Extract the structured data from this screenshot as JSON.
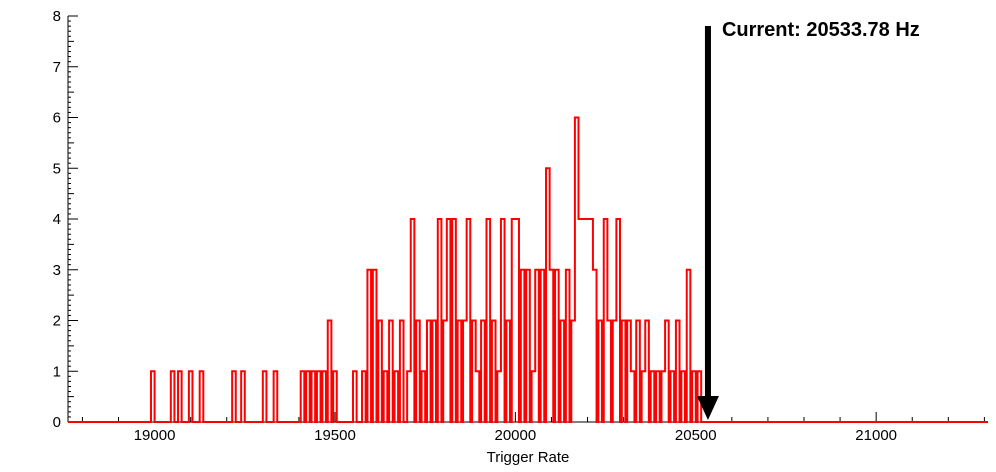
{
  "annotation": {
    "text": "Current: 20533.78 Hz",
    "x": 20533.78,
    "arrow_color": "#000000"
  },
  "chart_data": {
    "type": "bar",
    "style": "step-histogram",
    "title": "",
    "xlabel": "Trigger Rate",
    "ylabel": "",
    "color": "#ff0000",
    "axis_color": "#000000",
    "xlim": [
      18760,
      21310
    ],
    "ylim": [
      0,
      8
    ],
    "x_ticks": [
      19000,
      19500,
      20000,
      20500,
      21000
    ],
    "y_ticks": [
      0,
      1,
      2,
      3,
      4,
      5,
      6,
      7,
      8
    ],
    "x_minor_step": 100,
    "y_minor_step": 0.1,
    "grid": false,
    "legend": "none",
    "bin_width": 10,
    "bins": [
      [
        18990,
        1
      ],
      [
        19045,
        1
      ],
      [
        19065,
        1
      ],
      [
        19095,
        1
      ],
      [
        19125,
        1
      ],
      [
        19215,
        1
      ],
      [
        19240,
        1
      ],
      [
        19300,
        1
      ],
      [
        19330,
        1
      ],
      [
        19405,
        1
      ],
      [
        19420,
        1
      ],
      [
        19435,
        1
      ],
      [
        19450,
        1
      ],
      [
        19465,
        1
      ],
      [
        19480,
        2
      ],
      [
        19495,
        1
      ],
      [
        19550,
        1
      ],
      [
        19575,
        1
      ],
      [
        19590,
        3
      ],
      [
        19605,
        3
      ],
      [
        19620,
        2
      ],
      [
        19635,
        1
      ],
      [
        19650,
        2
      ],
      [
        19665,
        1
      ],
      [
        19680,
        2
      ],
      [
        19700,
        1
      ],
      [
        19710,
        4
      ],
      [
        19725,
        2
      ],
      [
        19740,
        1
      ],
      [
        19755,
        2
      ],
      [
        19770,
        2
      ],
      [
        19785,
        4
      ],
      [
        19800,
        2
      ],
      [
        19810,
        4
      ],
      [
        19825,
        4
      ],
      [
        19840,
        2
      ],
      [
        19855,
        2
      ],
      [
        19865,
        4
      ],
      [
        19880,
        2
      ],
      [
        19890,
        1
      ],
      [
        19905,
        2
      ],
      [
        19920,
        4
      ],
      [
        19935,
        2
      ],
      [
        19950,
        1
      ],
      [
        19960,
        4
      ],
      [
        19975,
        2
      ],
      [
        19990,
        4
      ],
      [
        20000,
        4
      ],
      [
        20015,
        3
      ],
      [
        20030,
        3
      ],
      [
        20045,
        1
      ],
      [
        20055,
        3
      ],
      [
        20070,
        3
      ],
      [
        20085,
        5
      ],
      [
        20095,
        3
      ],
      [
        20110,
        3
      ],
      [
        20125,
        2
      ],
      [
        20140,
        3
      ],
      [
        20155,
        2
      ],
      [
        20165,
        6
      ],
      [
        20175,
        4
      ],
      [
        20185,
        4
      ],
      [
        20195,
        4
      ],
      [
        20205,
        4
      ],
      [
        20215,
        3
      ],
      [
        20230,
        2
      ],
      [
        20245,
        4
      ],
      [
        20255,
        2
      ],
      [
        20270,
        2
      ],
      [
        20280,
        4
      ],
      [
        20295,
        2
      ],
      [
        20310,
        2
      ],
      [
        20320,
        1
      ],
      [
        20335,
        2
      ],
      [
        20350,
        1
      ],
      [
        20360,
        2
      ],
      [
        20375,
        1
      ],
      [
        20390,
        1
      ],
      [
        20405,
        1
      ],
      [
        20415,
        2
      ],
      [
        20430,
        1
      ],
      [
        20445,
        2
      ],
      [
        20460,
        1
      ],
      [
        20475,
        3
      ],
      [
        20490,
        1
      ],
      [
        20505,
        1
      ]
    ]
  }
}
